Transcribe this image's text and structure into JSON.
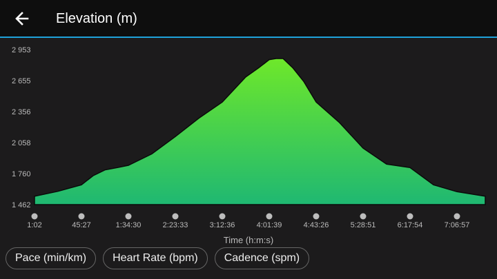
{
  "header": {
    "title": "Elevation (m)",
    "back_icon": "arrow-left-icon"
  },
  "colors": {
    "accent": "#1fa3dc",
    "fill_top": "#6ee82a",
    "fill_bottom": "#1fb872",
    "background": "#1c1b1c"
  },
  "chart_data": {
    "type": "area",
    "title": "Elevation (m)",
    "xlabel": "Time (h:m:s)",
    "ylabel": "",
    "ylim": [
      1462,
      2953
    ],
    "y_ticks": [
      "1 462",
      "1 760",
      "2 058",
      "2 356",
      "2 655",
      "2 953"
    ],
    "y_tick_values": [
      1462,
      1760,
      2058,
      2356,
      2655,
      2953
    ],
    "x_ticks": [
      "1:02",
      "45:27",
      "1:34:30",
      "2:23:33",
      "3:12:36",
      "4:01:39",
      "4:43:26",
      "5:28:51",
      "6:17:54",
      "7:06:57"
    ],
    "grid": false,
    "points": [
      [
        "0:01:02",
        1542
      ],
      [
        "0:23:15",
        1590
      ],
      [
        "0:45:27",
        1652
      ],
      [
        "0:57:43",
        1740
      ],
      [
        "1:09:58",
        1795
      ],
      [
        "1:22:58",
        1818
      ],
      [
        "1:34:30",
        1840
      ],
      [
        "1:59:02",
        1950
      ],
      [
        "2:23:33",
        2116
      ],
      [
        "2:48:05",
        2293
      ],
      [
        "3:12:36",
        2448
      ],
      [
        "3:37:08",
        2690
      ],
      [
        "3:50:50",
        2779
      ],
      [
        "4:01:39",
        2856
      ],
      [
        "4:07:48",
        2867
      ],
      [
        "4:13:57",
        2867
      ],
      [
        "4:22:33",
        2779
      ],
      [
        "4:32:23",
        2646
      ],
      [
        "4:43:26",
        2448
      ],
      [
        "5:06:09",
        2249
      ],
      [
        "5:28:51",
        2005
      ],
      [
        "5:53:23",
        1851
      ],
      [
        "6:17:54",
        1818
      ],
      [
        "6:42:26",
        1652
      ],
      [
        "7:06:57",
        1586
      ],
      [
        "7:36:31",
        1542
      ]
    ]
  },
  "buttons": [
    {
      "label": "Pace (min/km)"
    },
    {
      "label": "Heart Rate (bpm)"
    },
    {
      "label": "Cadence (spm)"
    }
  ]
}
